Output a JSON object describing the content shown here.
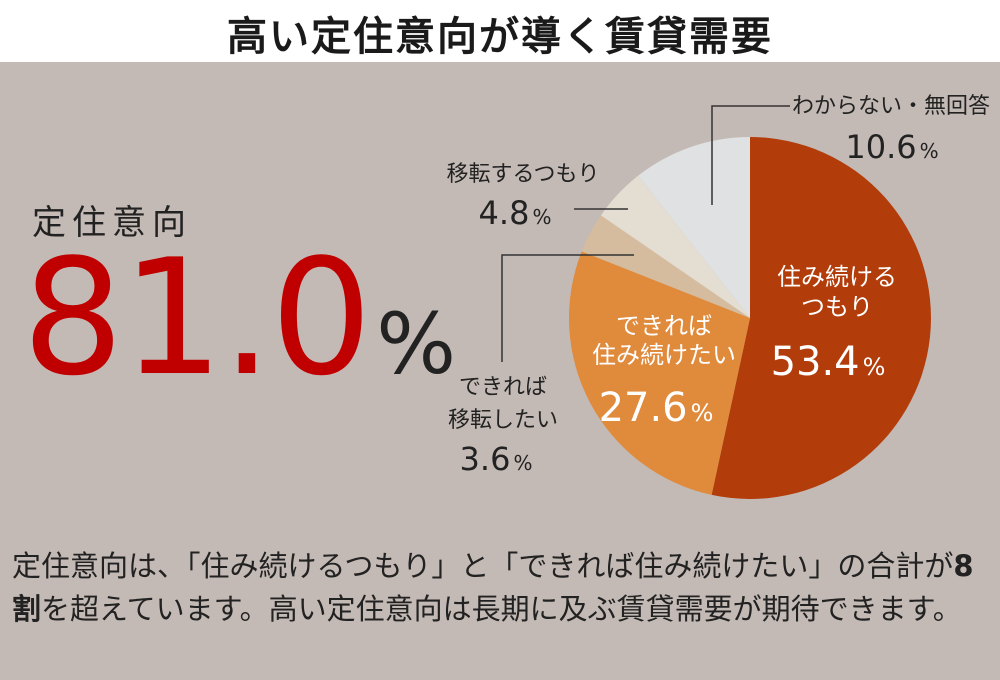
{
  "header": {
    "title": "高い定住意向が導く賃貸需要"
  },
  "hero": {
    "label": "定住意向",
    "value": "81.0",
    "unit": "%"
  },
  "chart_data": {
    "type": "pie",
    "unit": "%",
    "slices": [
      {
        "label_lines": [
          "住み続ける",
          "つもり"
        ],
        "value": 53.4,
        "value_text": "53.4",
        "color": "#b23c0a"
      },
      {
        "label_lines": [
          "できれば",
          "住み続けたい"
        ],
        "value": 27.6,
        "value_text": "27.6",
        "color": "#e08a3c"
      },
      {
        "label_lines": [
          "できれば",
          "移転したい"
        ],
        "value": 3.6,
        "value_text": "3.6",
        "color": "#d6bc9e"
      },
      {
        "label_lines": [
          "移転するつもり"
        ],
        "value": 4.8,
        "value_text": "4.8",
        "color": "#e4ddd1"
      },
      {
        "label_lines": [
          "わからない・無回答"
        ],
        "value": 10.6,
        "value_text": "10.6",
        "color": "#dfe1e3"
      }
    ]
  },
  "description": {
    "part1": "定住意向は、「住み続けるつもり」と「できれば住み続けたい」の合計が",
    "bold": "8割",
    "part2": "を超えています。高い定住意向は長期に及ぶ賃貸需要が期待できます。"
  }
}
